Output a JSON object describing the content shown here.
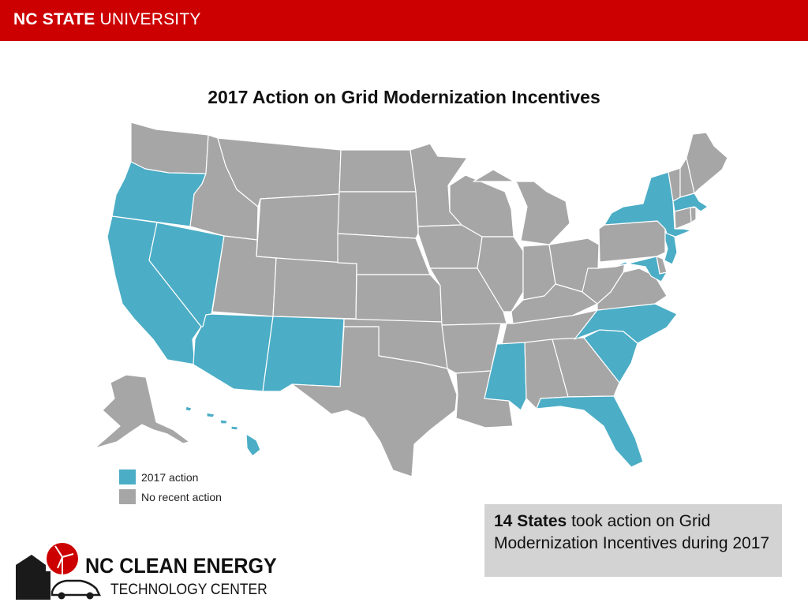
{
  "header": {
    "university_bold": "NC STATE",
    "university_light": "UNIVERSITY",
    "bar_color": "#cc0000"
  },
  "map": {
    "title": "2017 Action on Grid Modernization Incentives",
    "colors": {
      "action": "#4badc6",
      "no_action": "#a6a6a6",
      "border": "#ffffff"
    },
    "states_with_2017_action": [
      "OR",
      "CA",
      "NV",
      "AZ",
      "NM",
      "NY",
      "MA",
      "NJ",
      "MD",
      "NC",
      "SC",
      "MS",
      "FL",
      "HI"
    ],
    "states_no_recent_action": [
      "WA",
      "ID",
      "MT",
      "WY",
      "UT",
      "CO",
      "ND",
      "SD",
      "NE",
      "KS",
      "OK",
      "TX",
      "MN",
      "IA",
      "MO",
      "AR",
      "LA",
      "WI",
      "IL",
      "MI",
      "IN",
      "OH",
      "KY",
      "TN",
      "AL",
      "GA",
      "WV",
      "VA",
      "PA",
      "VT",
      "NH",
      "ME",
      "CT",
      "RI",
      "DE",
      "AK"
    ]
  },
  "legend": {
    "items": [
      {
        "label": "2017 action",
        "color": "#4badc6"
      },
      {
        "label": "No recent action",
        "color": "#a6a6a6"
      }
    ]
  },
  "summary": {
    "count_text": "14 States",
    "rest_text": " took action on Grid Modernization Incentives during 2017"
  },
  "footer_logo": {
    "line1": "NC CLEAN ENERGY",
    "line2": "TECHNOLOGY CENTER",
    "accent_color": "#cc0000"
  }
}
